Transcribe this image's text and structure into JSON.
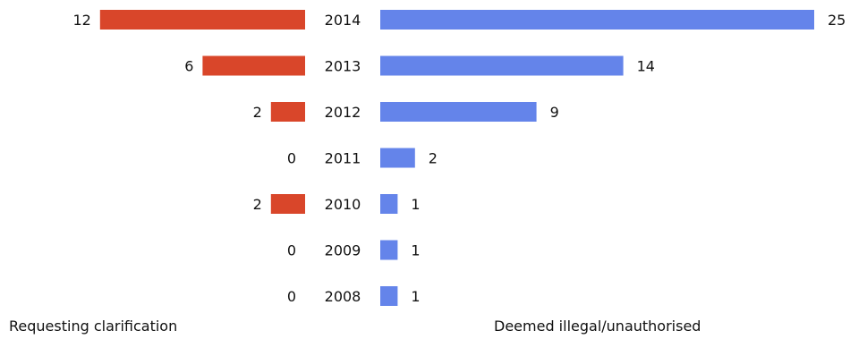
{
  "chart_data": {
    "type": "bar",
    "categories": [
      "2014",
      "2013",
      "2012",
      "2011",
      "2010",
      "2009",
      "2008"
    ],
    "series": [
      {
        "name": "Requesting clarification",
        "values": [
          12,
          6,
          2,
          0,
          2,
          0,
          0
        ],
        "color": "#d9462a"
      },
      {
        "name": "Deemed illegal/unauthorised",
        "values": [
          25,
          14,
          9,
          2,
          1,
          1,
          1
        ],
        "color": "#6484ea"
      }
    ]
  }
}
